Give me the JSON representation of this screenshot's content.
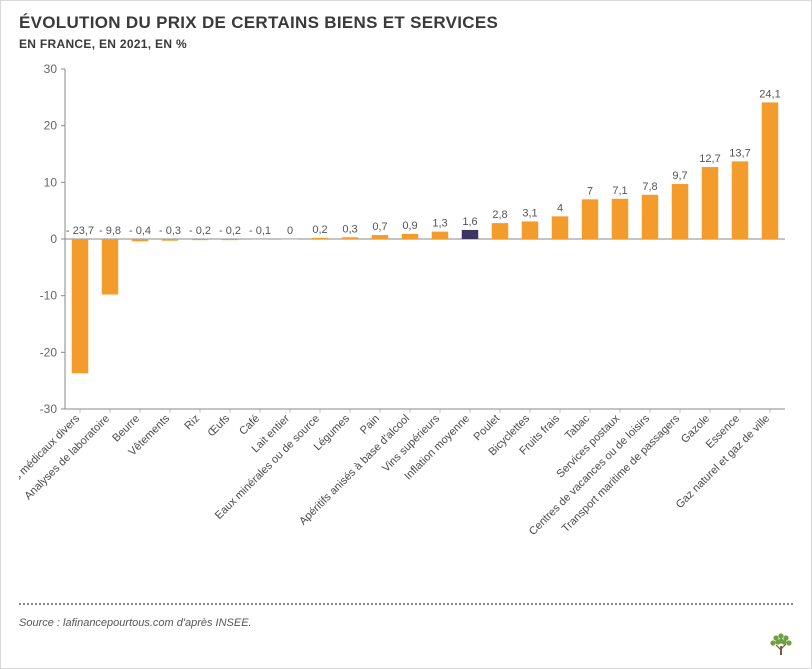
{
  "title": "ÉVOLUTION DU PRIX DE CERTAINS BIENS ET SERVICES",
  "subtitle": "EN FRANCE, EN 2021, EN %",
  "source": "Source : lafinancepourtous.com d'après INSEE.",
  "chart": {
    "type": "bar",
    "background_color": "#ffffff",
    "plot_border_color": "#888888",
    "ylim": [
      -30,
      30
    ],
    "ytick_step": 10,
    "yticks": [
      -30,
      -20,
      -10,
      0,
      10,
      20,
      30
    ],
    "zero_line_color": "#888888",
    "zero_line_width": 1,
    "bar_color_default": "#f39c2b",
    "bar_color_highlight": "#3b3560",
    "bar_width": 0.55,
    "label_fontsize": 11,
    "tick_fontsize": 12,
    "label_color": "#555555",
    "categories": [
      "Produits médicaux divers",
      "Analyses de laboratoire",
      "Beurre",
      "Vêtements",
      "Riz",
      "Œufs",
      "Café",
      "Lait entier",
      "Eaux minérales ou de source",
      "Légumes",
      "Pain",
      "Apéritifs anisés à base d'alcool",
      "Vins supérieurs",
      "Inflation moyenne",
      "Poulet",
      "Bicyclettes",
      "Fruits frais",
      "Tabac",
      "Services postaux",
      "Centres de vacances ou de loisirs",
      "Transport maritime de passagers",
      "Gazole",
      "Essence",
      "Gaz naturel et gaz de ville"
    ],
    "values": [
      -23.7,
      -9.8,
      -0.4,
      -0.3,
      -0.2,
      -0.2,
      -0.1,
      0,
      0.2,
      0.3,
      0.7,
      0.9,
      1.3,
      1.6,
      2.8,
      3.1,
      4,
      7,
      7.1,
      7.8,
      9.7,
      12.7,
      13.7,
      24.1
    ],
    "value_labels": [
      "- 23,7",
      "- 9,8",
      "- 0,4",
      "- 0,3",
      "- 0,2",
      "- 0,2",
      "- 0,1",
      "0",
      "0,2",
      "0,3",
      "0,7",
      "0,9",
      "1,3",
      "1,6",
      "2,8",
      "3,1",
      "4",
      "7",
      "7,1",
      "7,8",
      "9,7",
      "12,7",
      "13,7",
      "24,1"
    ],
    "highlight_index": 13
  },
  "logo": {
    "color_trunk": "#7a5a3a",
    "color_leaves": "#6fa041"
  }
}
